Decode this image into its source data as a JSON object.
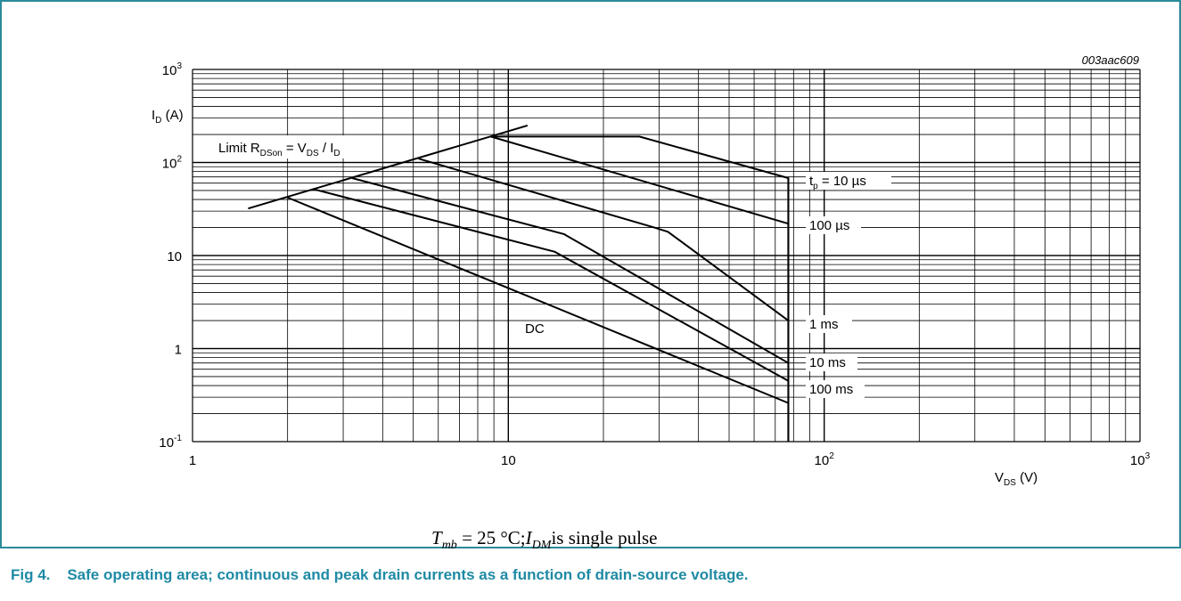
{
  "chart_data": {
    "type": "line",
    "id_code": "003aac609",
    "xscale": "log",
    "yscale": "log",
    "xlim": [
      1,
      1000
    ],
    "ylim": [
      0.1,
      1000
    ],
    "xlabel": {
      "main": "V",
      "sub": "DS",
      "unit": " (V)"
    },
    "ylabel": {
      "main": "I",
      "sub": "D",
      "unit": " (A)"
    },
    "x_ticks": [
      {
        "base": "1",
        "exp": ""
      },
      {
        "base": "10",
        "exp": ""
      },
      {
        "base": "10",
        "exp": "2"
      },
      {
        "base": "10",
        "exp": "3"
      }
    ],
    "y_ticks": [
      {
        "base": "10",
        "exp": "-1"
      },
      {
        "base": "1",
        "exp": ""
      },
      {
        "base": "10",
        "exp": ""
      },
      {
        "base": "10",
        "exp": "2"
      },
      {
        "base": "10",
        "exp": "3"
      }
    ],
    "limit_label": {
      "p1": "Limit R",
      "s1": "DSon",
      "p2": " = V",
      "s2": "DS",
      "p3": " / I",
      "s3": "D"
    },
    "limit_line": {
      "x": [
        1.5,
        11.5
      ],
      "y": [
        32,
        250
      ]
    },
    "vertical_limit_x": 77,
    "series": [
      {
        "name": "tp10",
        "label_main": "t",
        "label_sub": "p",
        "label_rest": " = 10 µs",
        "x": [
          8.8,
          26,
          77,
          77
        ],
        "y": [
          190,
          190,
          68,
          0.1
        ]
      },
      {
        "name": "100us",
        "label_main": "100 µs",
        "label_sub": "",
        "label_rest": "",
        "x": [
          8.8,
          77
        ],
        "y": [
          190,
          22
        ]
      },
      {
        "name": "1ms",
        "label_main": "1 ms",
        "label_sub": "",
        "label_rest": "",
        "x": [
          5.2,
          29,
          32,
          77
        ],
        "y": [
          110,
          20,
          18,
          2
        ]
      },
      {
        "name": "10ms",
        "label_main": "10 ms",
        "label_sub": "",
        "label_rest": "",
        "x": [
          3.2,
          15,
          77
        ],
        "y": [
          68,
          17,
          0.7
        ]
      },
      {
        "name": "100ms",
        "label_main": "100 ms",
        "label_sub": "",
        "label_rest": "",
        "x": [
          2.4,
          14,
          77
        ],
        "y": [
          52,
          11,
          0.45
        ]
      },
      {
        "name": "DC",
        "label_main": "DC",
        "label_sub": "",
        "label_rest": "",
        "x": [
          2.0,
          77
        ],
        "y": [
          42,
          0.26
        ]
      }
    ],
    "footnote": {
      "T": "T",
      "mb": "mb",
      "eq": " = 25 °C;",
      "I": "I",
      "DM": "DM",
      "rest": "is single pulse"
    }
  },
  "caption": {
    "number": "Fig 4.",
    "text": "Safe operating area; continuous and peak drain currents as a function of drain-source voltage."
  }
}
